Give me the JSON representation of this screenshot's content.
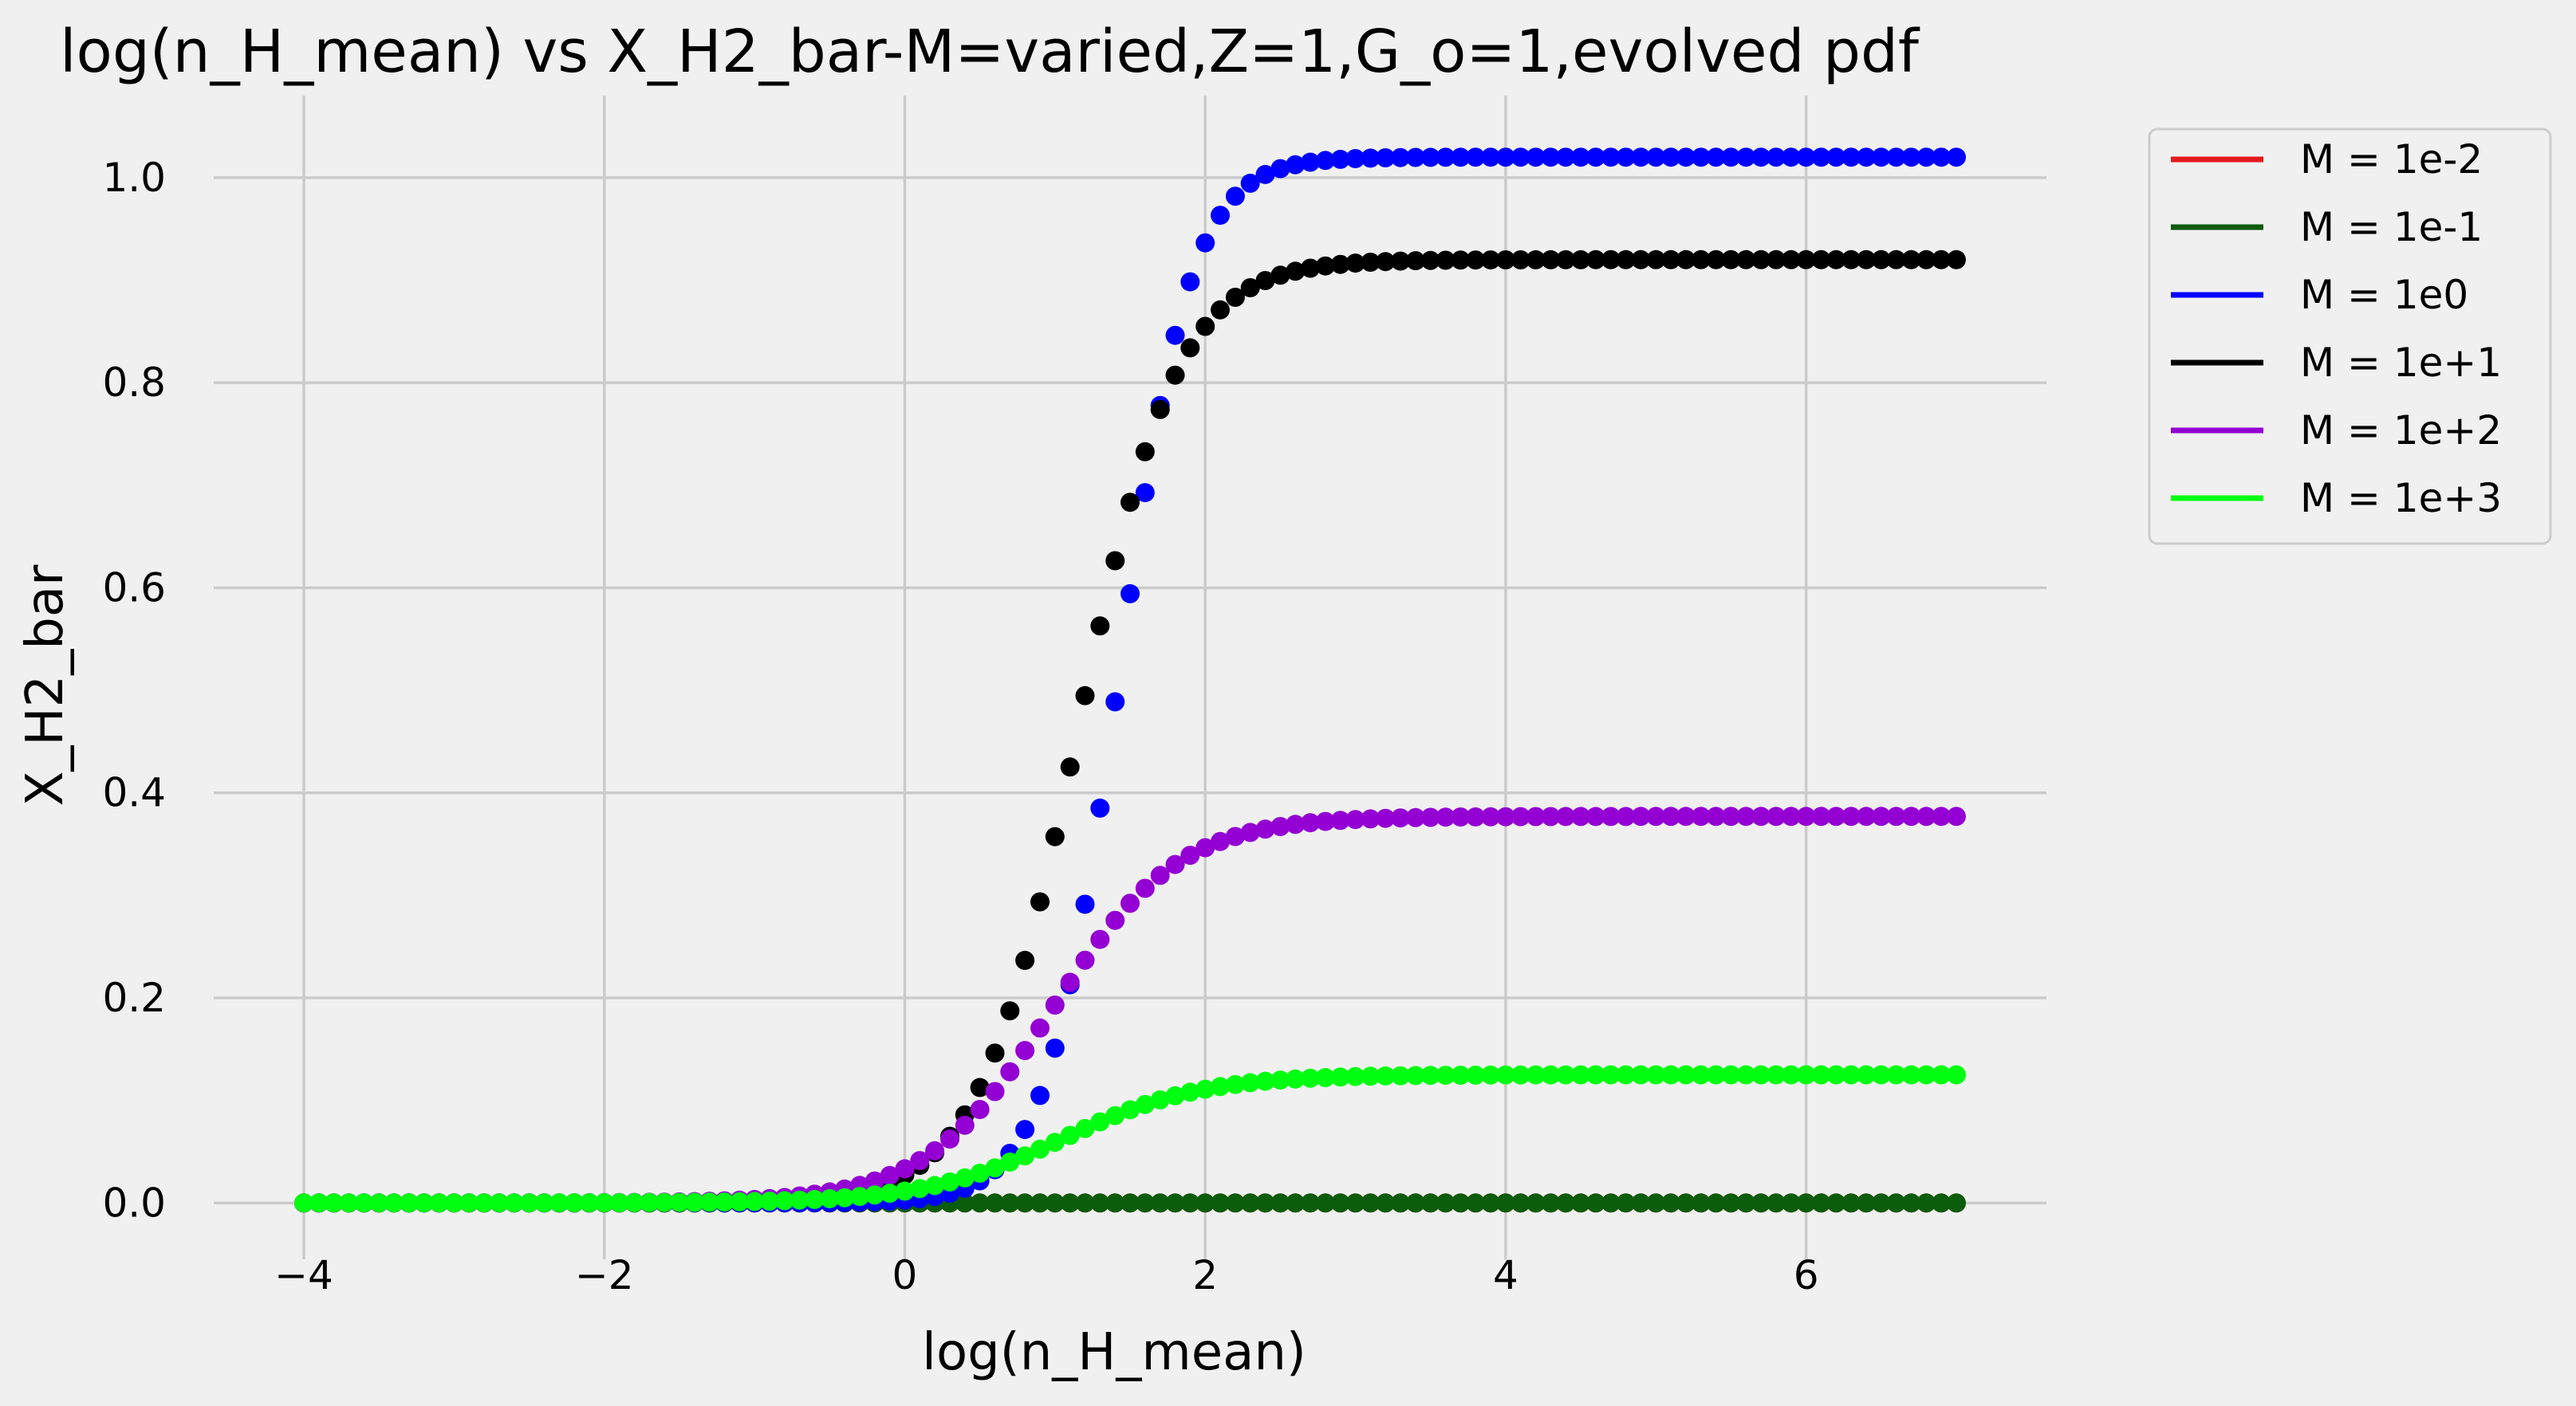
{
  "chart_data": {
    "type": "scatter",
    "title": "log(n_H_mean) vs X_H2_bar-M=varied,Z=1,G_o=1,evolved pdf",
    "xlabel": "log(n_H_mean)",
    "ylabel": "X_H2_bar",
    "xlim": [
      -4.6,
      7.6
    ],
    "ylim": [
      -0.055,
      1.08
    ],
    "xticks": [
      -4,
      -2,
      0,
      2,
      4,
      6
    ],
    "xtick_labels": [
      "−4",
      "−2",
      "0",
      "2",
      "4",
      "6"
    ],
    "yticks": [
      0.0,
      0.2,
      0.4,
      0.6,
      0.8,
      1.0
    ],
    "ytick_labels": [
      "0.0",
      "0.2",
      "0.4",
      "0.6",
      "0.8",
      "1.0"
    ],
    "grid": true,
    "legend_position": "outside-top-right",
    "x_range": [
      -4,
      7
    ],
    "n_points": 111,
    "series": [
      {
        "name": "M = 1e-2",
        "color": "#e41a1c",
        "model": "logistic",
        "plateau": 0.0,
        "center": 1.0,
        "width": 0.3
      },
      {
        "name": "M = 1e-1",
        "color": "#0b5c0b",
        "model": "logistic",
        "plateau": 0.0,
        "center": 1.0,
        "width": 0.3
      },
      {
        "name": "M = 1e0",
        "color": "#0000ff",
        "model": "logistic",
        "plateau": 1.02,
        "center": 1.42,
        "width": 0.24
      },
      {
        "name": "M = 1e+1",
        "color": "#000000",
        "model": "logistic",
        "plateau": 0.92,
        "center": 1.15,
        "width": 0.33
      },
      {
        "name": "M = 1e+2",
        "color": "#9400d3",
        "model": "logistic",
        "plateau": 0.377,
        "center": 0.98,
        "width": 0.42
      },
      {
        "name": "M = 1e+3",
        "color": "#00ff11",
        "model": "logistic",
        "plateau": 0.125,
        "center": 1.05,
        "width": 0.46
      }
    ]
  }
}
